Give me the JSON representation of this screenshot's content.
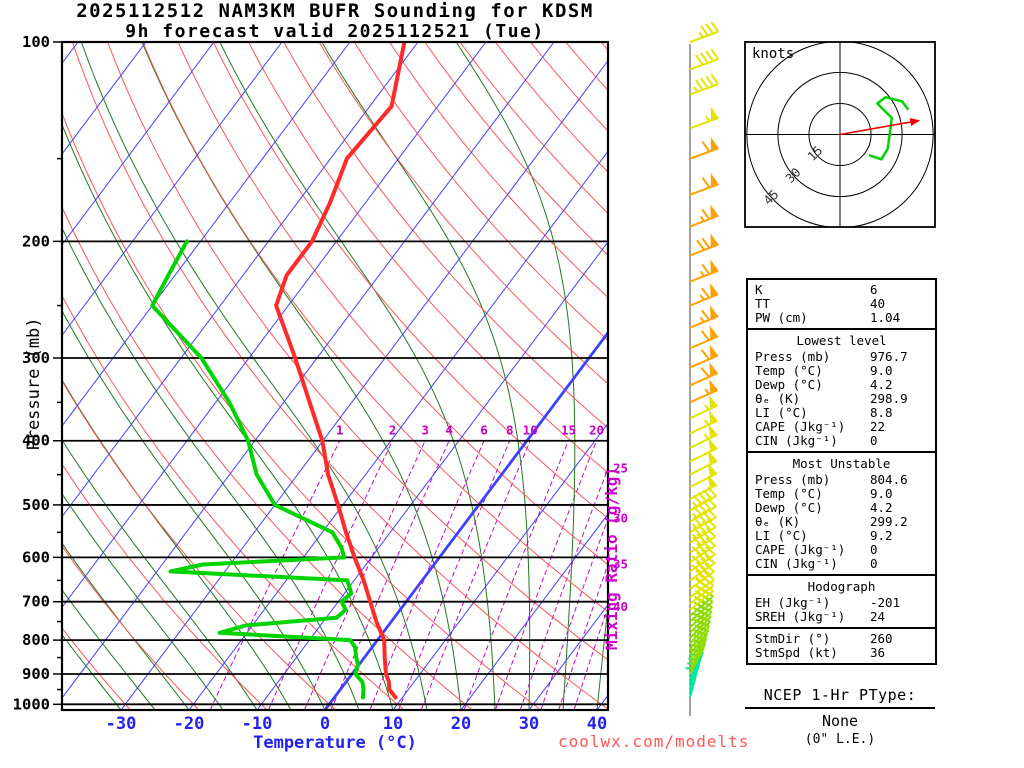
{
  "title": {
    "line1": "2025112512 NAM3KM BUFR Sounding for KDSM",
    "line2": "9h forecast valid 2025112521 (Tue)"
  },
  "axes": {
    "pressure_label": "Pressure (mb)",
    "temperature_label": "Temperature (°C)",
    "mixing_ratio_label": "Mixing Ratio (g/kg)",
    "pressure_ticks": [
      100,
      200,
      300,
      400,
      500,
      600,
      700,
      800,
      900,
      1000
    ],
    "temperature_ticks": [
      -30,
      -20,
      -10,
      0,
      10,
      20,
      30,
      40
    ]
  },
  "chart_data": {
    "type": "skewt-log-p sounding",
    "pressure_range": [
      100,
      1020
    ],
    "temperature_axis_range_c": [
      -40,
      45
    ],
    "grid": {
      "isotherms_c": {
        "min": -110,
        "max": 40,
        "step": 10,
        "highlight": 0
      },
      "dry_adiabats_c": {
        "min": -30,
        "max": 190,
        "step": 10
      },
      "moist_adiabats_c": {
        "min": -30,
        "max": 40,
        "step": 5
      }
    },
    "mixing_ratio_gkg": [
      1,
      2,
      3,
      4,
      6,
      8,
      10,
      15,
      20,
      25,
      30,
      35,
      40
    ],
    "temperature_profile": {
      "pressure_mb": [
        976.7,
        950,
        925,
        900,
        850,
        800,
        750,
        700,
        650,
        600,
        550,
        500,
        450,
        400,
        350,
        300,
        250,
        225,
        200,
        175,
        150,
        125,
        100
      ],
      "temp_c": [
        9.0,
        7.2,
        6.3,
        5.0,
        3.0,
        1.0,
        -2.2,
        -5.3,
        -8.6,
        -12.5,
        -16.5,
        -20.7,
        -25.5,
        -30.1,
        -36.2,
        -43.2,
        -51.8,
        -53.6,
        -53.6,
        -55.2,
        -57.6,
        -56.8,
        -62.0
      ]
    },
    "dewpoint_profile": {
      "pressure_mb": [
        976.7,
        950,
        925,
        900,
        870,
        850,
        820,
        800,
        780,
        760,
        740,
        720,
        700,
        680,
        650,
        630,
        615,
        600,
        580,
        550,
        500,
        450,
        400,
        350,
        300,
        250,
        225,
        200
      ],
      "dewpoint_c": [
        4.2,
        3.4,
        2.4,
        0.5,
        -0.2,
        -1.2,
        -2.5,
        -4.0,
        -24.0,
        -21.0,
        -8.5,
        -8.0,
        -9.5,
        -9.0,
        -11.0,
        -38.0,
        -34.0,
        -14.0,
        -15.5,
        -18.5,
        -30.0,
        -36.0,
        -41.0,
        -48.0,
        -57.0,
        -70.0,
        -71.0,
        -72.0
      ]
    },
    "wind_barbs": [
      [
        976,
        195,
        10
      ],
      [
        960,
        198,
        12
      ],
      [
        945,
        200,
        15
      ],
      [
        930,
        203,
        15
      ],
      [
        915,
        206,
        18
      ],
      [
        900,
        208,
        20
      ],
      [
        885,
        211,
        20
      ],
      [
        870,
        213,
        22
      ],
      [
        855,
        215,
        25
      ],
      [
        840,
        218,
        25
      ],
      [
        825,
        220,
        25
      ],
      [
        810,
        222,
        28
      ],
      [
        795,
        224,
        30
      ],
      [
        780,
        226,
        30
      ],
      [
        765,
        228,
        30
      ],
      [
        750,
        229,
        32
      ],
      [
        735,
        230,
        33
      ],
      [
        720,
        231,
        35
      ],
      [
        705,
        232,
        35
      ],
      [
        690,
        233,
        35
      ],
      [
        670,
        234,
        38
      ],
      [
        650,
        235,
        40
      ],
      [
        630,
        236,
        40
      ],
      [
        610,
        237,
        42
      ],
      [
        590,
        238,
        43
      ],
      [
        570,
        239,
        45
      ],
      [
        550,
        240,
        45
      ],
      [
        530,
        240,
        47
      ],
      [
        510,
        241,
        48
      ],
      [
        490,
        242,
        50
      ],
      [
        470,
        243,
        50
      ],
      [
        450,
        243,
        52
      ],
      [
        430,
        244,
        53
      ],
      [
        410,
        244,
        55
      ],
      [
        390,
        245,
        55
      ],
      [
        370,
        245,
        57
      ],
      [
        350,
        246,
        58
      ],
      [
        330,
        246,
        60
      ],
      [
        310,
        247,
        62
      ],
      [
        290,
        247,
        63
      ],
      [
        270,
        248,
        65
      ],
      [
        250,
        248,
        67
      ],
      [
        230,
        249,
        68
      ],
      [
        210,
        249,
        70
      ],
      [
        190,
        249,
        68
      ],
      [
        170,
        250,
        64
      ],
      [
        150,
        250,
        60
      ],
      [
        135,
        250,
        55
      ],
      [
        120,
        250,
        48
      ],
      [
        110,
        250,
        42
      ],
      [
        100,
        250,
        36
      ]
    ],
    "barb_speed_colors": [
      {
        "max": 19,
        "color": "#00e8a0"
      },
      {
        "max": 33,
        "color": "#8cdc00"
      },
      {
        "max": 57,
        "color": "#e4e400"
      },
      {
        "max": 999,
        "color": "#ffa000"
      }
    ],
    "hodograph": {
      "units_label": "knots",
      "rings_kt": [
        15,
        30,
        45
      ],
      "trace_uv_kt": [
        [
          14,
          -10
        ],
        [
          20,
          -12
        ],
        [
          23,
          -7
        ],
        [
          24,
          0
        ],
        [
          25,
          8
        ],
        [
          18,
          15
        ],
        [
          22,
          18
        ],
        [
          30,
          16
        ],
        [
          33,
          12
        ]
      ],
      "storm_motion_dir_deg": 260,
      "storm_motion_kt": 36
    },
    "colors": {
      "isotherm": "#4040ff",
      "dry": "#ff5555",
      "moist": "#1f7a1f",
      "mixing": "#cc00cc",
      "temperature": "#ff2a2a",
      "dewpoint": "#00d400",
      "temp_axis": "#2222ee",
      "storm_arrow": "#ee0000"
    }
  },
  "stats": {
    "basic": [
      [
        "K",
        "6"
      ],
      [
        "TT",
        "40"
      ],
      [
        "PW (cm)",
        "1.04"
      ]
    ],
    "sections": [
      {
        "header": "Lowest level",
        "rows": [
          [
            "Press (mb)",
            "976.7"
          ],
          [
            "Temp (°C)",
            "9.0"
          ],
          [
            "Dewp (°C)",
            "4.2"
          ],
          [
            "θₑ (K)",
            "298.9"
          ],
          [
            "LI (°C)",
            "8.8"
          ],
          [
            "CAPE (Jkg⁻¹)",
            "22"
          ],
          [
            "CIN (Jkg⁻¹)",
            "0"
          ]
        ]
      },
      {
        "header": "Most Unstable",
        "rows": [
          [
            "Press (mb)",
            "804.6"
          ],
          [
            "Temp (°C)",
            "9.0"
          ],
          [
            "Dewp (°C)",
            "4.2"
          ],
          [
            "θₑ (K)",
            "299.2"
          ],
          [
            "LI (°C)",
            "9.2"
          ],
          [
            "CAPE (Jkg⁻¹)",
            "0"
          ],
          [
            "CIN (Jkg⁻¹)",
            "0"
          ]
        ]
      },
      {
        "header": "Hodograph",
        "rows": [
          [
            "EH (Jkg⁻¹)",
            "-201"
          ],
          [
            "SREH (Jkg⁻¹)",
            "24"
          ]
        ]
      }
    ],
    "storm": [
      [
        "StmDir (°)",
        "260"
      ],
      [
        "StmSpd (kt)",
        "36"
      ]
    ]
  },
  "ptype": {
    "title": "NCEP 1-Hr PType:",
    "value": "None",
    "le": "(0\" L.E.)"
  },
  "footer": {
    "site": "coolwx.com/modelts"
  }
}
